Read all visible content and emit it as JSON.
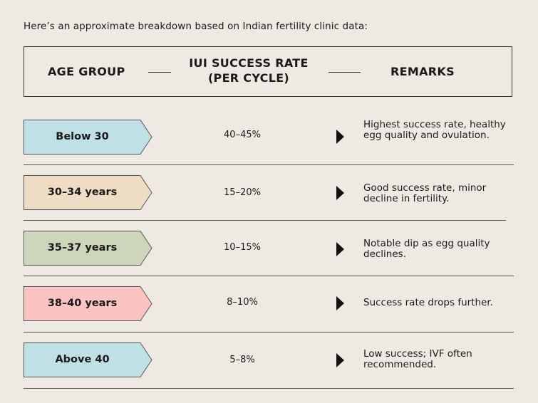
{
  "intro": "Here’s an approximate breakdown based on Indian fertility clinic data:",
  "header": {
    "age_group": "AGE GROUP",
    "rate_line1": "IUI SUCCESS RATE",
    "rate_line2": "(PER CYCLE)",
    "remarks": "REMARKS"
  },
  "rows": [
    {
      "age": "Below 30",
      "rate": "40–45%",
      "remark": "Highest success rate, healthy egg quality and ovulation.",
      "color": "#bfe1e6"
    },
    {
      "age": "30–34 years",
      "rate": "15–20%",
      "remark": "Good success rate, minor decline in fertility.",
      "color": "#efdcc4"
    },
    {
      "age": "35–37 years",
      "rate": "10–15%",
      "remark": "Notable dip as egg quality declines.",
      "color": "#cdd6bb"
    },
    {
      "age": "38–40 years",
      "rate": "8–10%",
      "remark": "Success rate drops further.",
      "color": "#fbc4c2"
    },
    {
      "age": "Above 40",
      "rate": "5–8%",
      "remark": "Low success; IVF often recommended.",
      "color": "#bfe1e6"
    }
  ]
}
